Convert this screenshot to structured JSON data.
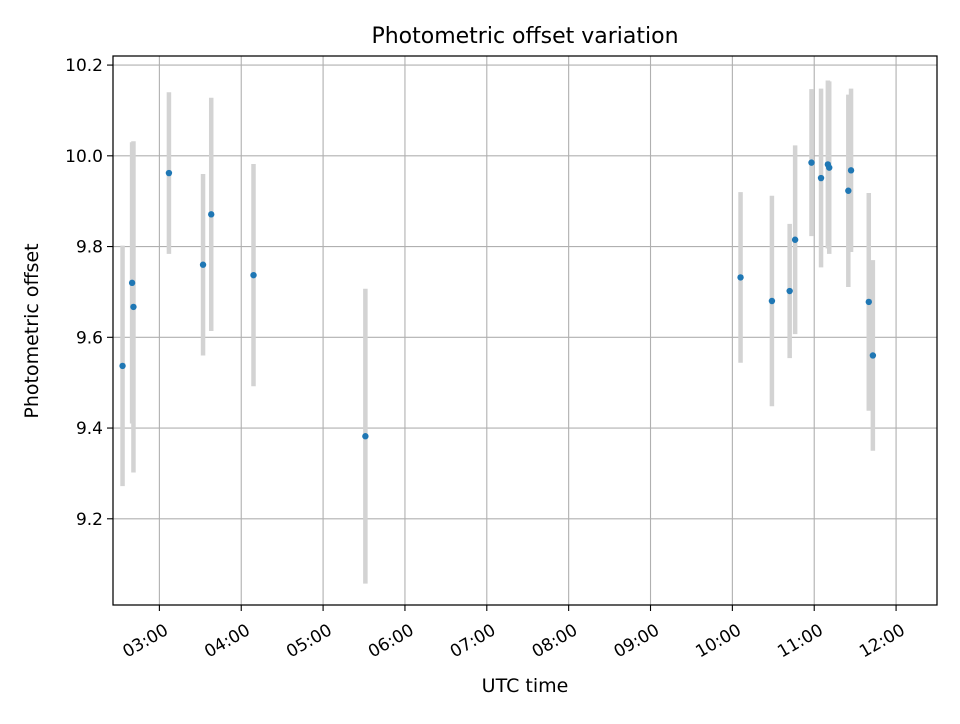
{
  "chart_data": {
    "type": "scatter",
    "title": "Photometric offset variation",
    "xlabel": "UTC time",
    "ylabel": "Photometric offset",
    "x_axis_kind": "time",
    "x_ticks": [
      "03:00",
      "04:00",
      "05:00",
      "06:00",
      "07:00",
      "08:00",
      "09:00",
      "10:00",
      "11:00",
      "12:00"
    ],
    "xlim": [
      "02:26",
      "12:30"
    ],
    "y_ticks": [
      "9.2",
      "9.4",
      "9.6",
      "9.8",
      "10.0",
      "10.2"
    ],
    "ylim": [
      9.01,
      10.22
    ],
    "grid": true,
    "legend": "none",
    "colors": {
      "point": "#1f77b4",
      "errorbar": "#d3d3d3",
      "grid": "#b0b0b0",
      "axis": "#000000"
    },
    "points": [
      {
        "x": "02:33",
        "y": 9.537,
        "yerr": 0.265
      },
      {
        "x": "02:40",
        "y": 9.72,
        "yerr": 0.31
      },
      {
        "x": "02:41",
        "y": 9.667,
        "yerr": 0.365
      },
      {
        "x": "03:07",
        "y": 9.962,
        "yerr": 0.178
      },
      {
        "x": "03:32",
        "y": 9.76,
        "yerr": 0.2
      },
      {
        "x": "03:38",
        "y": 9.871,
        "yerr": 0.257
      },
      {
        "x": "04:09",
        "y": 9.737,
        "yerr": 0.245
      },
      {
        "x": "05:31",
        "y": 9.382,
        "yerr": 0.325
      },
      {
        "x": "10:06",
        "y": 9.732,
        "yerr": 0.188
      },
      {
        "x": "10:29",
        "y": 9.68,
        "yerr": 0.232
      },
      {
        "x": "10:42",
        "y": 9.702,
        "yerr": 0.148
      },
      {
        "x": "10:46",
        "y": 9.815,
        "yerr": 0.208
      },
      {
        "x": "10:58",
        "y": 9.985,
        "yerr": 0.162
      },
      {
        "x": "11:05",
        "y": 9.951,
        "yerr": 0.197
      },
      {
        "x": "11:10",
        "y": 9.981,
        "yerr": 0.185
      },
      {
        "x": "11:11",
        "y": 9.974,
        "yerr": 0.19
      },
      {
        "x": "11:25",
        "y": 9.923,
        "yerr": 0.212
      },
      {
        "x": "11:27",
        "y": 9.968,
        "yerr": 0.18
      },
      {
        "x": "11:40",
        "y": 9.678,
        "yerr": 0.24
      },
      {
        "x": "11:43",
        "y": 9.56,
        "yerr": 0.21
      }
    ]
  }
}
